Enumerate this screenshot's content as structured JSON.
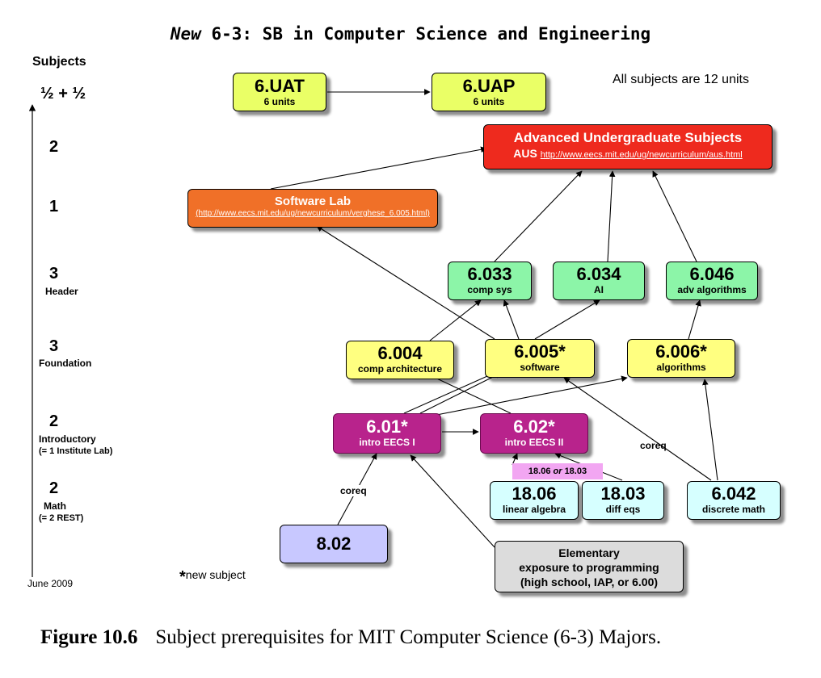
{
  "title": {
    "italic": "New",
    "rest": "6-3: SB in Computer Science and Engineering"
  },
  "note_units": "All subjects are 12 units",
  "axis": {
    "header": "Subjects",
    "levels": [
      {
        "count": "½ + ½",
        "label": ""
      },
      {
        "count": "2",
        "label": ""
      },
      {
        "count": "1",
        "label": ""
      },
      {
        "count": "3",
        "label": "Header"
      },
      {
        "count": "3",
        "label": "Foundation"
      },
      {
        "count": "2",
        "label": "Introductory",
        "label2": "(= 1 Institute Lab)"
      },
      {
        "count": "2",
        "label": "Math",
        "label2": "(= 2 REST)"
      }
    ]
  },
  "nodes": {
    "uat": {
      "num": "6.UAT",
      "sub": "6 units"
    },
    "uap": {
      "num": "6.UAP",
      "sub": "6 units"
    },
    "aus": {
      "title": "Advanced Undergraduate Subjects",
      "abbr": "AUS",
      "url": "http://www.eecs.mit.edu/ug/newcurriculum/aus.html"
    },
    "softlab": {
      "title": "Software Lab",
      "url": "(http://www.eecs.mit.edu/ug/newcurriculum/verghese_6.005.html)"
    },
    "n6033": {
      "num": "6.033",
      "sub": "comp sys"
    },
    "n6034": {
      "num": "6.034",
      "sub": "AI"
    },
    "n6046": {
      "num": "6.046",
      "sub": "adv algorithms"
    },
    "n6004": {
      "num": "6.004",
      "sub": "comp architecture"
    },
    "n6005": {
      "num": "6.005*",
      "sub": "software"
    },
    "n6006": {
      "num": "6.006*",
      "sub": "algorithms"
    },
    "n601": {
      "num": "6.01*",
      "sub": "intro EECS I"
    },
    "n602": {
      "num": "6.02*",
      "sub": "intro EECS II"
    },
    "either": {
      "a": "18.06",
      "or": "or",
      "b": "18.03"
    },
    "n1806": {
      "num": "18.06",
      "sub": "linear algebra"
    },
    "n1803": {
      "num": "18.03",
      "sub": "diff eqs"
    },
    "n6042": {
      "num": "6.042",
      "sub": "discrete math"
    },
    "n802": {
      "num": "8.02"
    },
    "elem": {
      "l1": "Elementary",
      "l2": "exposure to programming",
      "l3": "(high school, IAP, or 6.00)"
    }
  },
  "coreq_left": "coreq",
  "coreq_right": "coreq",
  "date": "June 2009",
  "footnote": {
    "star": "*",
    "text": "new subject"
  },
  "caption": {
    "label": "Figure 10.6",
    "text": "Subject prerequisites for MIT Computer Science (6-3) Majors."
  }
}
